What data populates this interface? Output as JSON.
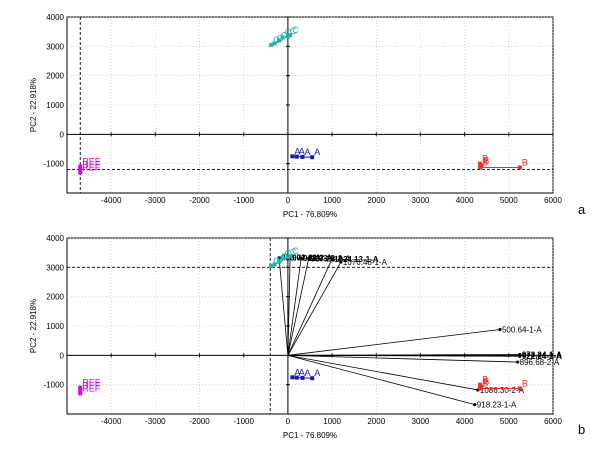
{
  "chart_data": [
    {
      "panel": "a",
      "type": "scatter",
      "xlabel": "PC1 - 76.809%",
      "ylabel": "PC2 - 22.918%",
      "xlim": [
        -5000,
        6000
      ],
      "ylim": [
        -2000,
        4000
      ],
      "xticks": [
        -4000,
        -3000,
        -2000,
        -1000,
        0,
        1000,
        2000,
        3000,
        4000,
        5000,
        6000
      ],
      "yticks": [
        -1000,
        0,
        1000,
        2000,
        3000,
        4000
      ],
      "grid": "dotted",
      "origin_axes": true,
      "crosshair": {
        "x": -4700,
        "y": -1200
      },
      "groups": [
        {
          "label": "REF",
          "color": "#e000e0",
          "points": [
            [
              -4700,
              -1100
            ],
            [
              -4700,
              -1200
            ],
            [
              -4700,
              -1300
            ]
          ],
          "labels": [
            "REF",
            "REF",
            "REF"
          ]
        },
        {
          "label": "A",
          "color": "#1a1ab0",
          "points": [
            [
              100,
              -750
            ],
            [
              200,
              -760
            ],
            [
              330,
              -770
            ],
            [
              550,
              -780
            ]
          ],
          "labels": [
            "A",
            "A",
            "A",
            "A"
          ]
        },
        {
          "label": "B",
          "color": "#e03030",
          "points": [
            [
              4350,
              -1000
            ],
            [
              4380,
              -1070
            ],
            [
              4350,
              -1130
            ],
            [
              5250,
              -1130
            ]
          ],
          "labels": [
            "B",
            "B",
            "B",
            "B"
          ]
        },
        {
          "label": "C",
          "color": "#20b0b0",
          "points": [
            [
              -380,
              3050
            ],
            [
              -300,
              3100
            ],
            [
              -200,
              3200
            ],
            [
              -120,
              3300
            ],
            [
              0,
              3350
            ],
            [
              50,
              3380
            ]
          ],
          "labels": [
            "C",
            "C",
            "C",
            "C",
            "C",
            "C"
          ]
        }
      ]
    },
    {
      "panel": "b",
      "type": "scatter",
      "xlabel": "PC1 - 76.809%",
      "ylabel": "PC2 - 22.918%",
      "xlim": [
        -5000,
        6000
      ],
      "ylim": [
        -2000,
        4000
      ],
      "xticks": [
        -4000,
        -3000,
        -2000,
        -1000,
        0,
        1000,
        2000,
        3000,
        4000,
        5000,
        6000
      ],
      "yticks": [
        -1000,
        0,
        1000,
        2000,
        3000,
        4000
      ],
      "grid": "dotted",
      "origin_axes": true,
      "crosshair": {
        "x": -400,
        "y": 3000
      },
      "groups": [
        {
          "label": "REF",
          "color": "#e000e0",
          "points": [
            [
              -4700,
              -1100
            ],
            [
              -4700,
              -1200
            ],
            [
              -4700,
              -1300
            ]
          ],
          "labels": [
            "REF",
            "REF",
            "REF"
          ]
        },
        {
          "label": "A",
          "color": "#1a1ab0",
          "points": [
            [
              100,
              -750
            ],
            [
              200,
              -760
            ],
            [
              330,
              -770
            ],
            [
              550,
              -780
            ]
          ],
          "labels": [
            "A",
            "A",
            "A",
            "A"
          ]
        },
        {
          "label": "B",
          "color": "#e03030",
          "points": [
            [
              4350,
              -1000
            ],
            [
              4380,
              -1070
            ],
            [
              4350,
              -1130
            ],
            [
              5250,
              -1130
            ]
          ],
          "labels": [
            "B",
            "B",
            "B",
            "B"
          ]
        },
        {
          "label": "C",
          "color": "#20b0b0",
          "points": [
            [
              -380,
              3050
            ],
            [
              -300,
              3100
            ],
            [
              -200,
              3200
            ],
            [
              -120,
              3300
            ],
            [
              0,
              3350
            ],
            [
              50,
              3380
            ]
          ],
          "labels": [
            "C",
            "C",
            "C",
            "C",
            "C",
            "C"
          ]
        }
      ],
      "loadings": [
        {
          "label": "500.64-1-A",
          "x": 4800,
          "y": 880,
          "bold": false
        },
        {
          "label": "973.24-1-A",
          "x": 5250,
          "y": 30,
          "bold": true
        },
        {
          "label": "922.24-2-A",
          "x": 5250,
          "y": -30,
          "bold": true
        },
        {
          "label": "896.68-2-A",
          "x": 5200,
          "y": -230,
          "bold": false
        },
        {
          "label": "1086.30-2-A",
          "x": 4300,
          "y": -1180,
          "bold": false
        },
        {
          "label": "918.23-1-A",
          "x": 4230,
          "y": -1680,
          "bold": false
        },
        {
          "label": "883.72-2-A",
          "x": -200,
          "y": 3330,
          "bold": true
        },
        {
          "label": "901.48-2-A",
          "x": 50,
          "y": 3330,
          "bold": true
        },
        {
          "label": "912.33-2-A",
          "x": 300,
          "y": 3310,
          "bold": true
        },
        {
          "label": "937.28-1-A",
          "x": 470,
          "y": 3300,
          "bold": true
        },
        {
          "label": "1024.13-1-A",
          "x": 1000,
          "y": 3290,
          "bold": true
        },
        {
          "label": "1076.48-1-A",
          "x": 1200,
          "y": 3180,
          "bold": false
        }
      ]
    }
  ]
}
